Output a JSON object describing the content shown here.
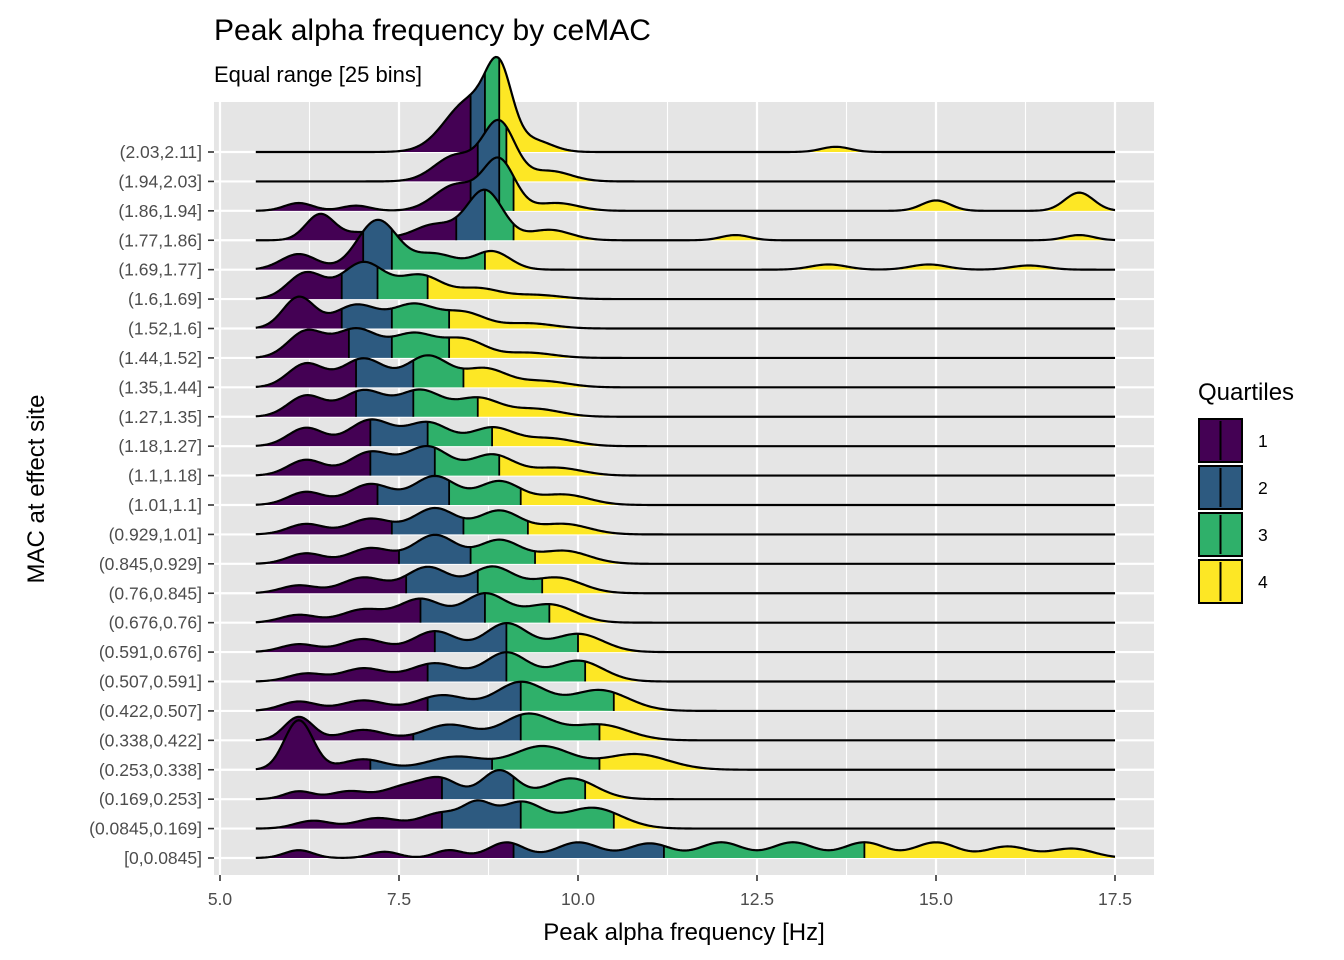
{
  "colors": {
    "panel": "#e5e5e5",
    "grid_major": "#ffffff",
    "q1": "#440154",
    "q2": "#2d5a80",
    "q3": "#2fb06a",
    "q4": "#fde725",
    "outline": "#000000"
  },
  "chart_data": {
    "type": "ridgeline",
    "title": "Peak alpha frequency by ceMAC",
    "subtitle": "Equal range [25 bins]",
    "xlabel": "Peak alpha frequency [Hz]",
    "ylabel": "MAC at effect site",
    "xlim": [
      5.0,
      17.5
    ],
    "x_ticks": [
      "5.0",
      "7.5",
      "10.0",
      "12.5",
      "15.0",
      "17.5"
    ],
    "x_tick_values": [
      5.0,
      7.5,
      10.0,
      12.5,
      15.0,
      17.5
    ],
    "grid": true,
    "legend": {
      "title": "Quartiles",
      "position": "right",
      "entries": [
        "1",
        "2",
        "3",
        "4"
      ]
    },
    "categories": [
      "[0,0.0845]",
      "(0.0845,0.169]",
      "(0.169,0.253]",
      "(0.253,0.338]",
      "(0.338,0.422]",
      "(0.422,0.507]",
      "(0.507,0.591]",
      "(0.591,0.676]",
      "(0.676,0.76]",
      "(0.76,0.845]",
      "(0.845,0.929]",
      "(0.929,1.01]",
      "(1.01,1.1]",
      "(1.1,1.18]",
      "(1.18,1.27]",
      "(1.27,1.35]",
      "(1.35,1.44]",
      "(1.44,1.52]",
      "(1.52,1.6]",
      "(1.6,1.69]",
      "(1.69,1.77]",
      "(1.77,1.86]",
      "(1.86,1.94]",
      "(1.94,2.03]",
      "(2.03,2.11]"
    ],
    "x_range": [
      5.5,
      17.5
    ],
    "quartile_cuts": [
      [
        9.1,
        11.2,
        14.0
      ],
      [
        8.1,
        9.2,
        10.5
      ],
      [
        8.1,
        9.1,
        10.1
      ],
      [
        7.1,
        8.8,
        10.3
      ],
      [
        7.7,
        9.2,
        10.3
      ],
      [
        7.9,
        9.2,
        10.5
      ],
      [
        7.9,
        9.0,
        10.1
      ],
      [
        8.0,
        9.0,
        10.0
      ],
      [
        7.8,
        8.7,
        9.6
      ],
      [
        7.6,
        8.6,
        9.5
      ],
      [
        7.5,
        8.5,
        9.4
      ],
      [
        7.4,
        8.4,
        9.3
      ],
      [
        7.2,
        8.2,
        9.2
      ],
      [
        7.1,
        8.0,
        8.9
      ],
      [
        7.1,
        7.9,
        8.8
      ],
      [
        6.9,
        7.7,
        8.6
      ],
      [
        6.9,
        7.7,
        8.4
      ],
      [
        6.8,
        7.4,
        8.2
      ],
      [
        6.7,
        7.4,
        8.2
      ],
      [
        6.7,
        7.2,
        7.9
      ],
      [
        7.0,
        7.4,
        8.7
      ],
      [
        8.3,
        8.7,
        9.1
      ],
      [
        8.5,
        8.9,
        9.1
      ],
      [
        8.6,
        8.9,
        9.0
      ],
      [
        8.5,
        8.7,
        8.9
      ]
    ],
    "peaks": [
      [
        [
          6.1,
          0.15,
          0.2
        ],
        [
          7.3,
          0.12,
          0.2
        ],
        [
          8.2,
          0.15,
          0.2
        ],
        [
          9.0,
          0.3,
          0.25
        ],
        [
          10.0,
          0.3,
          0.3
        ],
        [
          11.0,
          0.28,
          0.3
        ],
        [
          12.0,
          0.3,
          0.3
        ],
        [
          13.0,
          0.3,
          0.3
        ],
        [
          14.0,
          0.3,
          0.3
        ],
        [
          15.0,
          0.3,
          0.3
        ],
        [
          16.0,
          0.22,
          0.3
        ],
        [
          16.9,
          0.18,
          0.3
        ]
      ],
      [
        [
          6.3,
          0.15,
          0.25
        ],
        [
          7.2,
          0.2,
          0.3
        ],
        [
          8.1,
          0.3,
          0.3
        ],
        [
          8.6,
          0.4,
          0.2
        ],
        [
          9.2,
          0.5,
          0.3
        ],
        [
          10.2,
          0.4,
          0.4
        ]
      ],
      [
        [
          6.1,
          0.15,
          0.2
        ],
        [
          6.8,
          0.15,
          0.25
        ],
        [
          7.6,
          0.25,
          0.3
        ],
        [
          8.1,
          0.35,
          0.25
        ],
        [
          8.9,
          0.55,
          0.25
        ],
        [
          9.9,
          0.4,
          0.35
        ]
      ],
      [
        [
          6.1,
          0.95,
          0.2
        ],
        [
          7.0,
          0.2,
          0.3
        ],
        [
          8.3,
          0.25,
          0.4
        ],
        [
          9.5,
          0.45,
          0.4
        ],
        [
          10.8,
          0.3,
          0.45
        ]
      ],
      [
        [
          6.1,
          0.45,
          0.2
        ],
        [
          7.0,
          0.2,
          0.3
        ],
        [
          8.2,
          0.3,
          0.35
        ],
        [
          9.3,
          0.5,
          0.35
        ],
        [
          10.3,
          0.3,
          0.4
        ]
      ],
      [
        [
          6.1,
          0.18,
          0.25
        ],
        [
          7.0,
          0.2,
          0.3
        ],
        [
          8.1,
          0.3,
          0.35
        ],
        [
          9.2,
          0.55,
          0.35
        ],
        [
          10.3,
          0.4,
          0.4
        ]
      ],
      [
        [
          6.2,
          0.15,
          0.25
        ],
        [
          7.0,
          0.25,
          0.3
        ],
        [
          8.0,
          0.35,
          0.35
        ],
        [
          9.0,
          0.55,
          0.3
        ],
        [
          10.0,
          0.4,
          0.35
        ]
      ],
      [
        [
          6.1,
          0.15,
          0.25
        ],
        [
          7.0,
          0.25,
          0.3
        ],
        [
          8.0,
          0.4,
          0.3
        ],
        [
          9.0,
          0.55,
          0.3
        ],
        [
          10.0,
          0.35,
          0.35
        ]
      ],
      [
        [
          6.1,
          0.15,
          0.25
        ],
        [
          7.0,
          0.25,
          0.3
        ],
        [
          7.8,
          0.45,
          0.3
        ],
        [
          8.7,
          0.55,
          0.3
        ],
        [
          9.6,
          0.35,
          0.35
        ]
      ],
      [
        [
          6.1,
          0.15,
          0.25
        ],
        [
          7.0,
          0.3,
          0.3
        ],
        [
          7.9,
          0.5,
          0.3
        ],
        [
          8.8,
          0.5,
          0.3
        ],
        [
          9.7,
          0.3,
          0.35
        ]
      ],
      [
        [
          6.2,
          0.2,
          0.25
        ],
        [
          7.1,
          0.3,
          0.3
        ],
        [
          8.0,
          0.55,
          0.3
        ],
        [
          8.9,
          0.45,
          0.3
        ],
        [
          9.8,
          0.25,
          0.35
        ]
      ],
      [
        [
          6.2,
          0.2,
          0.25
        ],
        [
          7.1,
          0.3,
          0.3
        ],
        [
          8.0,
          0.5,
          0.3
        ],
        [
          8.9,
          0.45,
          0.3
        ],
        [
          9.8,
          0.2,
          0.35
        ]
      ],
      [
        [
          6.2,
          0.25,
          0.25
        ],
        [
          7.1,
          0.4,
          0.3
        ],
        [
          8.0,
          0.55,
          0.3
        ],
        [
          8.9,
          0.45,
          0.3
        ],
        [
          9.8,
          0.2,
          0.35
        ]
      ],
      [
        [
          6.2,
          0.3,
          0.25
        ],
        [
          7.1,
          0.45,
          0.3
        ],
        [
          7.9,
          0.55,
          0.3
        ],
        [
          8.8,
          0.4,
          0.3
        ],
        [
          9.7,
          0.15,
          0.35
        ]
      ],
      [
        [
          6.2,
          0.35,
          0.25
        ],
        [
          7.1,
          0.5,
          0.3
        ],
        [
          7.9,
          0.45,
          0.3
        ],
        [
          8.8,
          0.35,
          0.3
        ],
        [
          9.6,
          0.15,
          0.35
        ]
      ],
      [
        [
          6.2,
          0.4,
          0.25
        ],
        [
          7.0,
          0.5,
          0.3
        ],
        [
          7.8,
          0.5,
          0.3
        ],
        [
          8.6,
          0.35,
          0.3
        ],
        [
          9.4,
          0.15,
          0.35
        ]
      ],
      [
        [
          6.2,
          0.45,
          0.25
        ],
        [
          7.0,
          0.55,
          0.3
        ],
        [
          7.9,
          0.6,
          0.3
        ],
        [
          8.7,
          0.35,
          0.3
        ],
        [
          9.5,
          0.12,
          0.35
        ]
      ],
      [
        [
          6.2,
          0.5,
          0.25
        ],
        [
          6.9,
          0.55,
          0.3
        ],
        [
          7.7,
          0.45,
          0.3
        ],
        [
          8.4,
          0.35,
          0.3
        ],
        [
          9.3,
          0.1,
          0.35
        ]
      ],
      [
        [
          6.1,
          0.6,
          0.22
        ],
        [
          6.9,
          0.45,
          0.3
        ],
        [
          7.7,
          0.45,
          0.3
        ],
        [
          8.4,
          0.3,
          0.3
        ],
        [
          9.3,
          0.1,
          0.35
        ]
      ],
      [
        [
          6.2,
          0.5,
          0.25
        ],
        [
          7.0,
          0.7,
          0.3
        ],
        [
          7.8,
          0.45,
          0.3
        ],
        [
          8.6,
          0.2,
          0.3
        ],
        [
          9.4,
          0.08,
          0.35
        ]
      ],
      [
        [
          6.1,
          0.3,
          0.25
        ],
        [
          7.2,
          0.95,
          0.28
        ],
        [
          8.0,
          0.3,
          0.3
        ],
        [
          8.8,
          0.35,
          0.25
        ],
        [
          13.5,
          0.1,
          0.25
        ],
        [
          14.9,
          0.1,
          0.25
        ],
        [
          16.3,
          0.08,
          0.25
        ]
      ],
      [
        [
          6.4,
          0.5,
          0.2
        ],
        [
          7.0,
          0.15,
          0.25
        ],
        [
          8.0,
          0.3,
          0.3
        ],
        [
          8.7,
          0.95,
          0.25
        ],
        [
          9.6,
          0.2,
          0.3
        ],
        [
          12.2,
          0.1,
          0.2
        ],
        [
          17.0,
          0.1,
          0.2
        ]
      ],
      [
        [
          6.1,
          0.15,
          0.2
        ],
        [
          6.9,
          0.1,
          0.2
        ],
        [
          8.3,
          0.5,
          0.3
        ],
        [
          8.9,
          0.95,
          0.22
        ],
        [
          9.7,
          0.15,
          0.3
        ],
        [
          15.0,
          0.2,
          0.2
        ],
        [
          17.0,
          0.35,
          0.2
        ]
      ],
      [
        [
          8.3,
          0.5,
          0.3
        ],
        [
          8.9,
          1.1,
          0.22
        ],
        [
          9.6,
          0.2,
          0.3
        ]
      ],
      [
        [
          8.5,
          1.0,
          0.35
        ],
        [
          8.9,
          1.25,
          0.18
        ],
        [
          9.4,
          0.2,
          0.25
        ],
        [
          13.6,
          0.1,
          0.2
        ]
      ]
    ]
  }
}
